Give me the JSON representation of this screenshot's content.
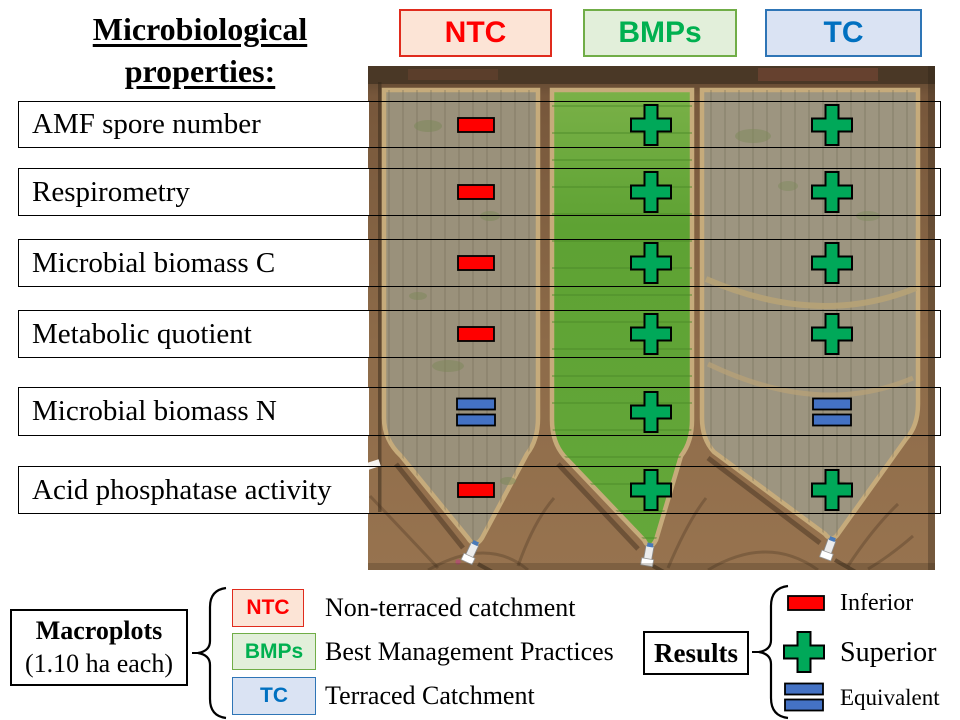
{
  "title": {
    "line1": "Microbiological",
    "line2": "properties:"
  },
  "columns": [
    {
      "label": "NTC",
      "text_color": "#FF0000",
      "bg": "#FCE4D6",
      "border": "#E02B1D"
    },
    {
      "label": "BMPs",
      "text_color": "#00B050",
      "bg": "#E2EFDA",
      "border": "#70AD47"
    },
    {
      "label": "TC",
      "text_color": "#0070C0",
      "bg": "#DAE3F3",
      "border": "#2E75B6"
    }
  ],
  "rows": [
    {
      "label": "AMF spore number",
      "results": [
        "inferior",
        "superior",
        "superior"
      ]
    },
    {
      "label": "Respirometry",
      "results": [
        "inferior",
        "superior",
        "superior"
      ]
    },
    {
      "label": "Microbial biomass C",
      "results": [
        "inferior",
        "superior",
        "superior"
      ]
    },
    {
      "label": "Metabolic quotient",
      "results": [
        "inferior",
        "superior",
        "superior"
      ]
    },
    {
      "label": "Microbial biomass N",
      "results": [
        "equivalent",
        "superior",
        "equivalent"
      ]
    },
    {
      "label": "Acid phosphatase activity",
      "results": [
        "inferior",
        "superior",
        "superior"
      ]
    }
  ],
  "symbols": {
    "inferior": {
      "color": "#FF0000"
    },
    "superior": {
      "color": "#00A859"
    },
    "equivalent": {
      "color": "#4472C4"
    }
  },
  "macroplots": {
    "title": "Macroplots",
    "subtitle": "(1.10 ha each)",
    "items": [
      {
        "label": "NTC",
        "description": "Non-terraced catchment"
      },
      {
        "label": "BMPs",
        "description": "Best Management Practices"
      },
      {
        "label": "TC",
        "description": "Terraced Catchment"
      }
    ]
  },
  "results_legend": {
    "title": "Results",
    "items": [
      {
        "symbol": "inferior",
        "label": "Inferior"
      },
      {
        "symbol": "superior",
        "label": "Superior"
      },
      {
        "symbol": "equivalent",
        "label": "Equivalent"
      }
    ]
  }
}
